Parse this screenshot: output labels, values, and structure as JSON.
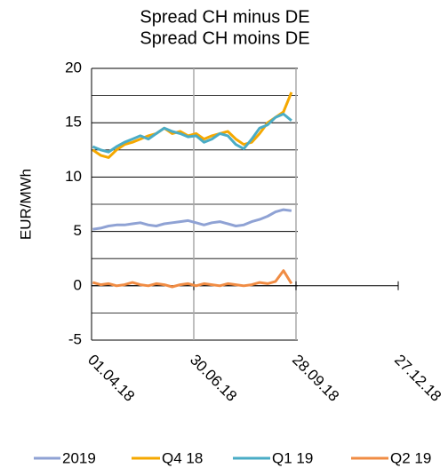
{
  "chart_data": {
    "type": "line",
    "title": [
      "Spread CH minus DE",
      "Spread CH moins DE"
    ],
    "y_label": "EUR/MWh",
    "x": [
      "2018-04-02",
      "2018-04-09",
      "2018-04-16",
      "2018-04-23",
      "2018-04-30",
      "2018-05-07",
      "2018-05-14",
      "2018-05-21",
      "2018-05-28",
      "2018-06-04",
      "2018-06-11",
      "2018-06-18",
      "2018-06-25",
      "2018-07-02",
      "2018-07-09",
      "2018-07-16",
      "2018-07-23",
      "2018-07-30",
      "2018-08-06",
      "2018-08-13",
      "2018-08-20",
      "2018-08-27",
      "2018-09-03",
      "2018-09-10",
      "2018-09-17",
      "2018-09-24"
    ],
    "series": [
      {
        "name": "2019",
        "color": "#8fa2d4",
        "values": [
          5.2,
          5.3,
          5.5,
          5.6,
          5.6,
          5.7,
          5.8,
          5.6,
          5.5,
          5.7,
          5.8,
          5.9,
          6,
          5.8,
          5.6,
          5.8,
          5.9,
          5.7,
          5.5,
          5.6,
          5.9,
          6.1,
          6.4,
          6.8,
          7,
          6.9
        ]
      },
      {
        "name": "Q4 18",
        "color": "#f5a800",
        "values": [
          12.5,
          12,
          11.8,
          12.5,
          13,
          13.2,
          13.5,
          13.8,
          14,
          14.5,
          14,
          14.2,
          13.8,
          14,
          13.5,
          13.8,
          14,
          14.2,
          13.5,
          13,
          13.2,
          14,
          15,
          15.5,
          16,
          17.8
        ]
      },
      {
        "name": "Q1 19",
        "color": "#4aacc6",
        "values": [
          12.8,
          12.5,
          12.3,
          12.8,
          13.2,
          13.5,
          13.8,
          13.5,
          14,
          14.5,
          14.2,
          14,
          13.7,
          13.8,
          13.2,
          13.5,
          14,
          13.8,
          13,
          12.6,
          13.5,
          14.5,
          14.8,
          15.5,
          15.8,
          15.2
        ]
      },
      {
        "name": "Q2 19",
        "color": "#f08c44",
        "values": [
          0.3,
          0.1,
          0.2,
          0,
          0.1,
          0.3,
          0.1,
          0,
          0.2,
          0.1,
          -0.1,
          0.1,
          0.2,
          0,
          0.2,
          0.1,
          0,
          0.2,
          0.1,
          0,
          0.1,
          0.3,
          0.2,
          0.4,
          1.4,
          0.2
        ]
      }
    ],
    "xlim": [
      "2018-04-01",
      "2018-12-27"
    ],
    "xticks": [
      {
        "value": "2018-04-01",
        "label": "01.04.18"
      },
      {
        "value": "2018-06-30",
        "label": "30.06.18"
      },
      {
        "value": "2018-09-28",
        "label": "28.09.18"
      },
      {
        "value": "2018-12-27",
        "label": "27.12.18"
      }
    ],
    "ylim": [
      -5,
      20
    ],
    "yticks": [
      -5,
      0,
      5,
      10,
      15,
      20
    ],
    "y_minor_ticks": [
      -2.5,
      2.5,
      7.5,
      12.5,
      17.5
    ],
    "grid": true,
    "legend": "bottom"
  }
}
